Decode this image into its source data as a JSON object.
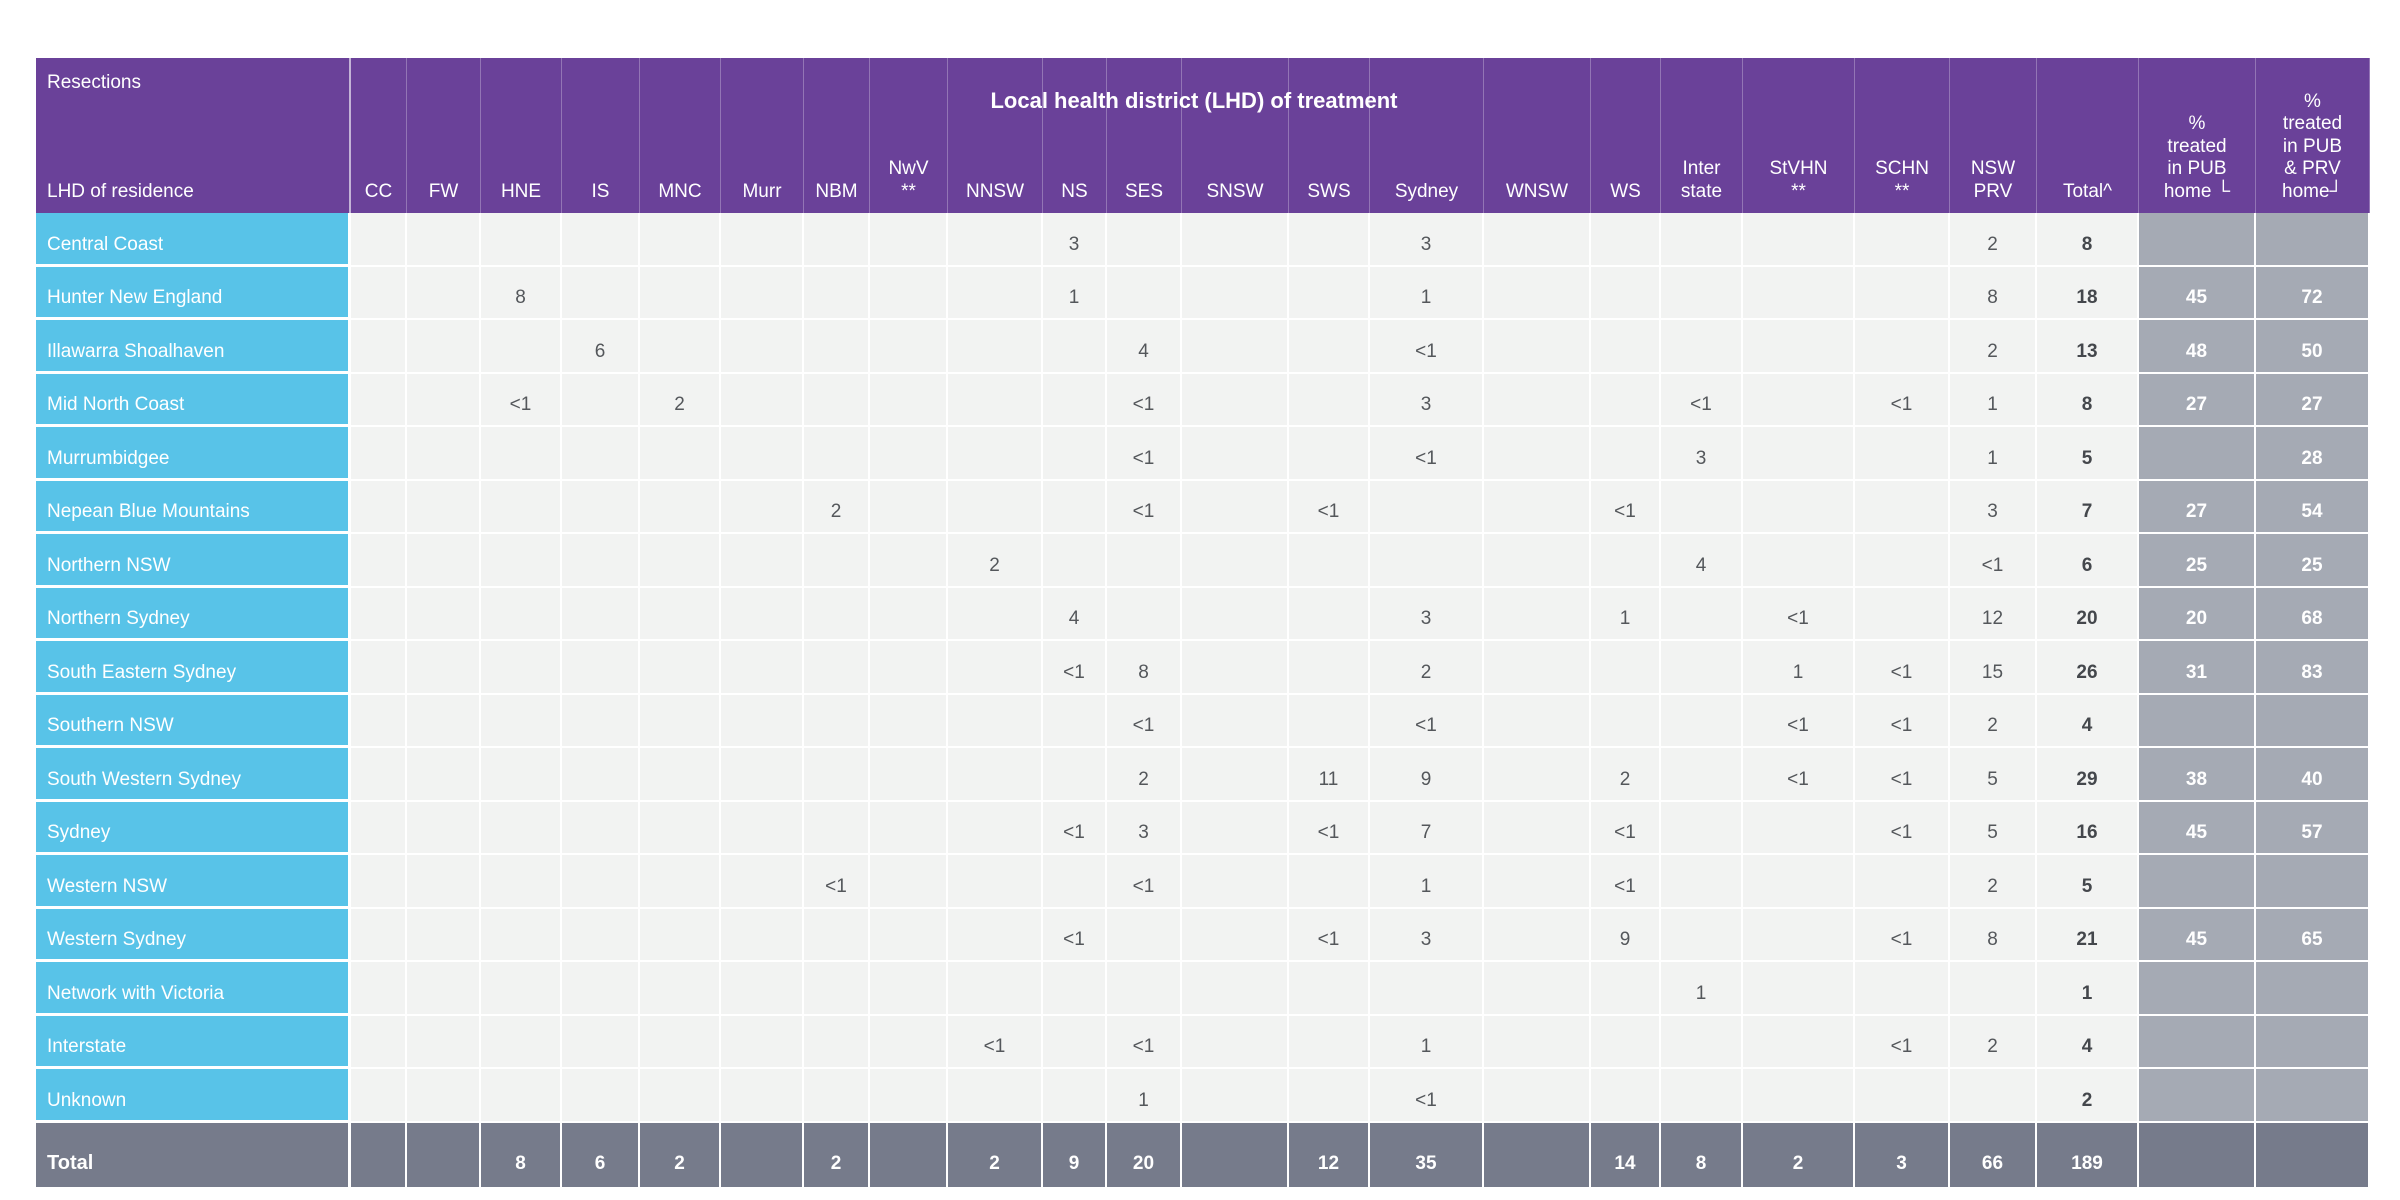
{
  "table": {
    "corner": {
      "top_label": "Resections",
      "bottom_label": "LHD of residence"
    },
    "treatment_header": "Local health district (LHD) of treatment",
    "columns": [
      "CC",
      "FW",
      "HNE",
      "IS",
      "MNC",
      "Murr",
      "NBM",
      "NwV\n**",
      "NNSW",
      "NS",
      "SES",
      "SNSW",
      "SWS",
      "Sydney",
      "WNSW",
      "WS",
      "Inter\nstate",
      "StVHN\n**",
      "SCHN\n**",
      "NSW\nPRV",
      "Total^",
      "%\ntreated\nin PUB\nhome └",
      "%\ntreated\nin PUB\n& PRV\nhome┘"
    ],
    "rows": [
      {
        "label": "Central Coast",
        "cells": [
          "",
          "",
          "",
          "",
          "",
          "",
          "",
          "",
          "",
          "3",
          "",
          "",
          "",
          "3",
          "",
          "",
          "",
          "",
          "",
          "2",
          "8",
          "",
          ""
        ]
      },
      {
        "label": "Hunter New England",
        "cells": [
          "",
          "",
          "8",
          "",
          "",
          "",
          "",
          "",
          "",
          "1",
          "",
          "",
          "",
          "1",
          "",
          "",
          "",
          "",
          "",
          "8",
          "18",
          "45",
          "72"
        ]
      },
      {
        "label": "Illawarra Shoalhaven",
        "cells": [
          "",
          "",
          "",
          "6",
          "",
          "",
          "",
          "",
          "",
          "",
          "4",
          "",
          "",
          "<1",
          "",
          "",
          "",
          "",
          "",
          "2",
          "13",
          "48",
          "50"
        ]
      },
      {
        "label": "Mid North Coast",
        "cells": [
          "",
          "",
          "<1",
          "",
          "2",
          "",
          "",
          "",
          "",
          "",
          "<1",
          "",
          "",
          "3",
          "",
          "",
          "<1",
          "",
          "<1",
          "1",
          "8",
          "27",
          "27"
        ]
      },
      {
        "label": "Murrumbidgee",
        "cells": [
          "",
          "",
          "",
          "",
          "",
          "",
          "",
          "",
          "",
          "",
          "<1",
          "",
          "",
          "<1",
          "",
          "",
          "3",
          "",
          "",
          "1",
          "5",
          "",
          "28"
        ]
      },
      {
        "label": "Nepean Blue Mountains",
        "cells": [
          "",
          "",
          "",
          "",
          "",
          "",
          "2",
          "",
          "",
          "",
          "<1",
          "",
          "<1",
          "",
          "",
          "<1",
          "",
          "",
          "",
          "3",
          "7",
          "27",
          "54"
        ]
      },
      {
        "label": "Northern NSW",
        "cells": [
          "",
          "",
          "",
          "",
          "",
          "",
          "",
          "",
          "2",
          "",
          "",
          "",
          "",
          "",
          "",
          "",
          "4",
          "",
          "",
          "<1",
          "6",
          "25",
          "25"
        ]
      },
      {
        "label": "Northern Sydney",
        "cells": [
          "",
          "",
          "",
          "",
          "",
          "",
          "",
          "",
          "",
          "4",
          "",
          "",
          "",
          "3",
          "",
          "1",
          "",
          "<1",
          "",
          "12",
          "20",
          "20",
          "68"
        ]
      },
      {
        "label": "South Eastern Sydney",
        "cells": [
          "",
          "",
          "",
          "",
          "",
          "",
          "",
          "",
          "",
          "<1",
          "8",
          "",
          "",
          "2",
          "",
          "",
          "",
          "1",
          "<1",
          "15",
          "26",
          "31",
          "83"
        ]
      },
      {
        "label": "Southern NSW",
        "cells": [
          "",
          "",
          "",
          "",
          "",
          "",
          "",
          "",
          "",
          "",
          "<1",
          "",
          "",
          "<1",
          "",
          "",
          "",
          "<1",
          "<1",
          "2",
          "4",
          "",
          ""
        ]
      },
      {
        "label": "South Western Sydney",
        "cells": [
          "",
          "",
          "",
          "",
          "",
          "",
          "",
          "",
          "",
          "",
          "2",
          "",
          "11",
          "9",
          "",
          "2",
          "",
          "<1",
          "<1",
          "5",
          "29",
          "38",
          "40"
        ]
      },
      {
        "label": "Sydney",
        "cells": [
          "",
          "",
          "",
          "",
          "",
          "",
          "",
          "",
          "",
          "<1",
          "3",
          "",
          "<1",
          "7",
          "",
          "<1",
          "",
          "",
          "<1",
          "5",
          "16",
          "45",
          "57"
        ]
      },
      {
        "label": "Western NSW",
        "cells": [
          "",
          "",
          "",
          "",
          "",
          "",
          "<1",
          "",
          "",
          "",
          "<1",
          "",
          "",
          "1",
          "",
          "<1",
          "",
          "",
          "",
          "2",
          "5",
          "",
          ""
        ]
      },
      {
        "label": "Western Sydney",
        "cells": [
          "",
          "",
          "",
          "",
          "",
          "",
          "",
          "",
          "",
          "<1",
          "",
          "",
          "<1",
          "3",
          "",
          "9",
          "",
          "",
          "<1",
          "8",
          "21",
          "45",
          "65"
        ]
      },
      {
        "label": "Network with Victoria",
        "cells": [
          "",
          "",
          "",
          "",
          "",
          "",
          "",
          "",
          "",
          "",
          "",
          "",
          "",
          "",
          "",
          "",
          "1",
          "",
          "",
          "",
          "1",
          "",
          ""
        ]
      },
      {
        "label": "Interstate",
        "cells": [
          "",
          "",
          "",
          "",
          "",
          "",
          "",
          "",
          "<1",
          "",
          "<1",
          "",
          "",
          "1",
          "",
          "",
          "",
          "",
          "<1",
          "2",
          "4",
          "",
          ""
        ]
      },
      {
        "label": "Unknown",
        "cells": [
          "",
          "",
          "",
          "",
          "",
          "",
          "",
          "",
          "",
          "",
          "1",
          "",
          "",
          "<1",
          "",
          "",
          "",
          "",
          "",
          "",
          "2",
          "",
          ""
        ]
      }
    ],
    "total_row": {
      "label": "Total",
      "cells": [
        "",
        "",
        "8",
        "6",
        "2",
        "",
        "2",
        "",
        "2",
        "9",
        "20",
        "",
        "12",
        "35",
        "",
        "14",
        "8",
        "2",
        "3",
        "66",
        "189",
        "",
        ""
      ]
    },
    "colors": {
      "header_purple": "#6a4199",
      "row_label_cyan": "#58c3e8",
      "cell_background": "#f2f3f2",
      "percent_cell_gray": "#a5aab4",
      "total_row_gray": "#767b8b",
      "gridline_white": "#ffffff",
      "data_text_gray": "#54575b"
    }
  }
}
